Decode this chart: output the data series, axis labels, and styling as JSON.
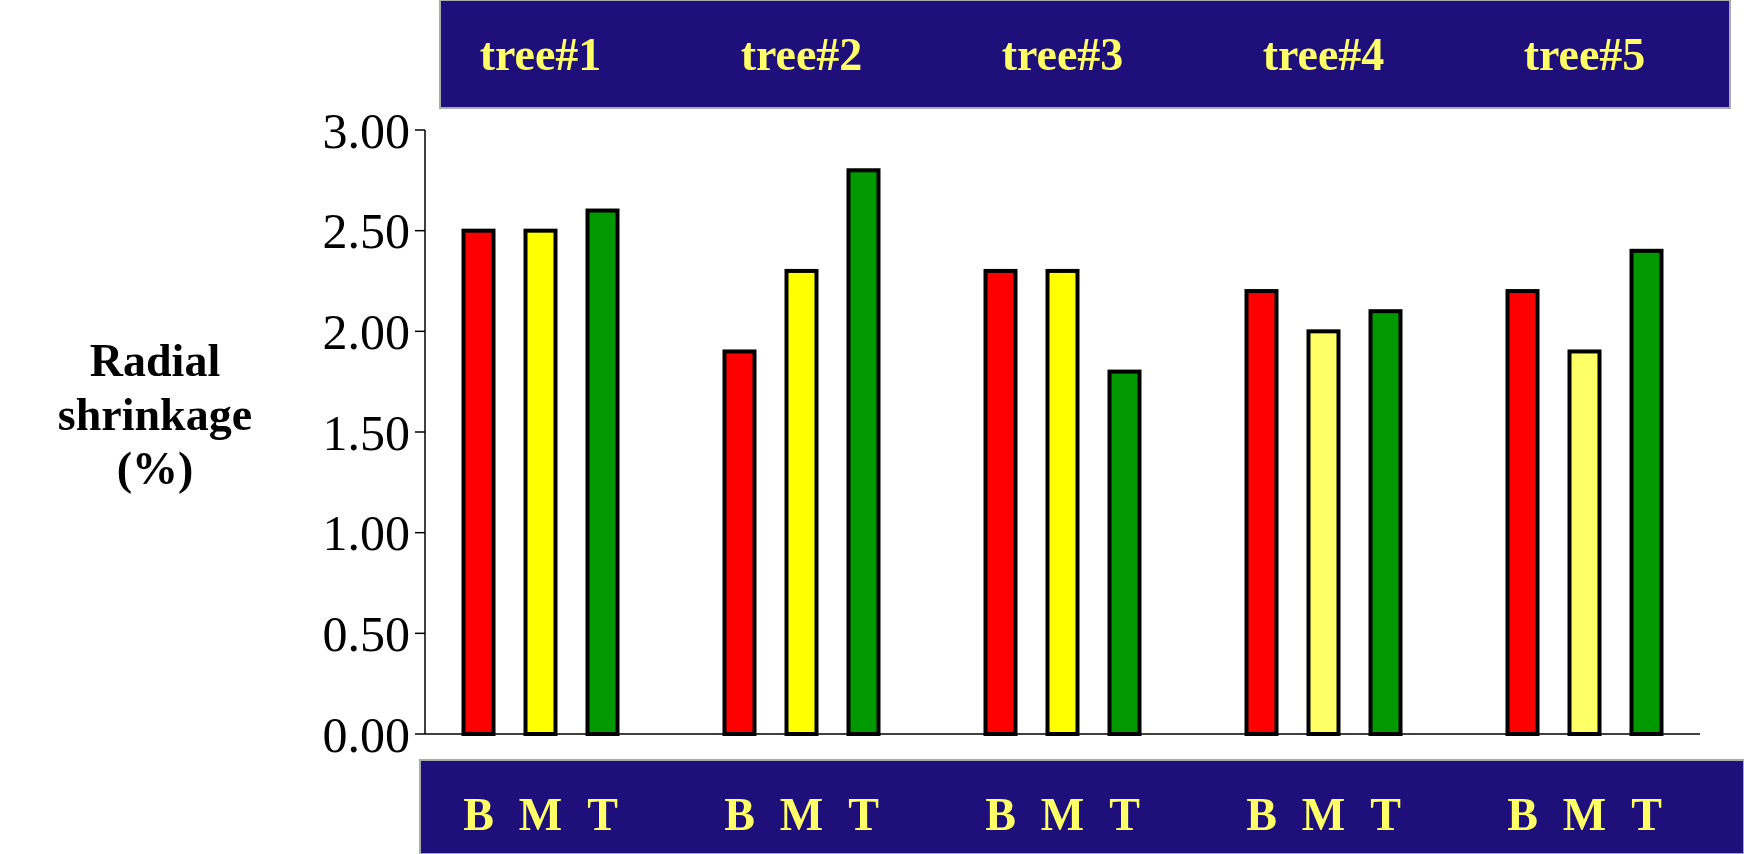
{
  "chart_data": {
    "type": "bar",
    "ylabel": "Radial shrinkage (%)",
    "categories": [
      "tree#1",
      "tree#2",
      "tree#3",
      "tree#4",
      "tree#5"
    ],
    "series": [
      {
        "name": "B",
        "color": "#ff0000",
        "values": [
          2.5,
          1.9,
          2.3,
          2.2,
          2.2
        ]
      },
      {
        "name": "M",
        "colors": [
          "#ffff00",
          "#ffff00",
          "#ffff00",
          "#ffff66",
          "#ffff66"
        ],
        "values": [
          2.5,
          2.3,
          2.3,
          2.0,
          1.9
        ]
      },
      {
        "name": "T",
        "color": "#009900",
        "values": [
          2.6,
          2.8,
          1.8,
          2.1,
          2.4
        ]
      }
    ],
    "ylim": [
      0,
      3
    ],
    "yticks": [
      {
        "value": 0,
        "label": "0.00"
      },
      {
        "value": 0.5,
        "label": "0.50"
      },
      {
        "value": 1,
        "label": "1.00"
      },
      {
        "value": 1.5,
        "label": "1.50"
      },
      {
        "value": 2,
        "label": "2.00"
      },
      {
        "value": 2.5,
        "label": "2.50"
      },
      {
        "value": 3,
        "label": "3.00"
      }
    ],
    "grid": false
  }
}
